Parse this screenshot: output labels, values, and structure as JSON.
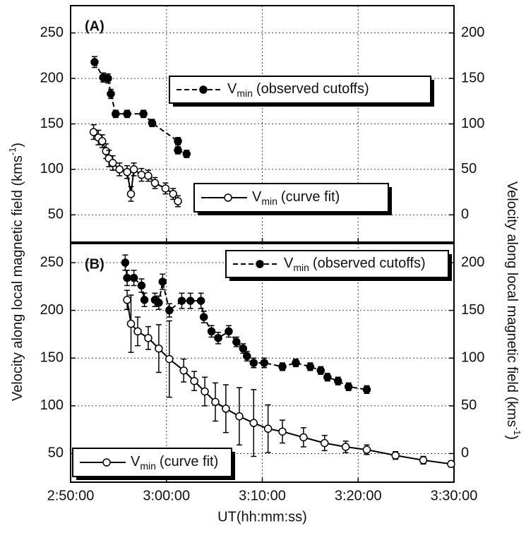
{
  "y_label": "Velocity along local magnetic field (kms",
  "y_label_sup": "-1",
  "y_label_end": ")",
  "chart_data": [
    {
      "type": "scatter",
      "panel_label": "(A)",
      "xlim": [
        170,
        210
      ],
      "xticks": [
        170,
        180,
        190,
        200,
        210
      ],
      "ylim": [
        20,
        280
      ],
      "yticks": [
        50,
        100,
        150,
        200,
        250
      ],
      "y2lim": [
        -30,
        230
      ],
      "y2ticks": [
        0,
        50,
        100,
        150,
        200
      ],
      "grid": true,
      "series": [
        {
          "name": "V",
          "name_sub": "min",
          "name_rest": "(observed cutoffs)",
          "color": "#000",
          "marker": "filled",
          "line": "dashed",
          "x": [
            172.5,
            173.4,
            173.9,
            174.2,
            174.7,
            175.9,
            177.6,
            178.5,
            181.2,
            181.2,
            182.1
          ],
          "values": [
            218,
            201,
            200,
            183,
            161,
            161,
            161,
            151,
            131,
            121,
            117
          ],
          "errors": [
            6,
            5,
            5,
            5,
            4,
            4,
            4,
            4,
            4,
            4,
            4
          ]
        },
        {
          "name": "V",
          "name_sub": "min",
          "name_rest": "(curve fit)",
          "color": "#000",
          "marker": "open",
          "line": "solid",
          "x": [
            172.4,
            172.9,
            173.3,
            173.7,
            174.0,
            174.4,
            175.1,
            175.9,
            176.3,
            176.6,
            177.4,
            178.1,
            178.8,
            179.9,
            180.7,
            181.2
          ],
          "values": [
            141,
            135,
            131,
            120,
            112,
            107,
            100,
            97,
            73,
            100,
            94,
            93,
            85,
            79,
            73,
            65
          ],
          "errors": [
            8,
            8,
            7,
            8,
            9,
            8,
            7,
            7,
            8,
            7,
            7,
            6,
            6,
            6,
            6,
            6
          ]
        }
      ]
    },
    {
      "type": "scatter",
      "panel_label": "(B)",
      "xlim": [
        170,
        210
      ],
      "xticks": [
        {
          "value": 170,
          "label": "2:50:00"
        },
        {
          "value": 180,
          "label": "3:00:00"
        },
        {
          "value": 190,
          "label": "3:10:00"
        },
        {
          "value": 200,
          "label": "3:20:00"
        },
        {
          "value": 210,
          "label": "3:30:00"
        }
      ],
      "ylim": [
        20,
        270
      ],
      "yticks": [
        50,
        100,
        150,
        200,
        250
      ],
      "y2lim": [
        -30,
        220
      ],
      "y2ticks": [
        0,
        50,
        100,
        150,
        200
      ],
      "grid": true,
      "xlabel": "UT(hh:mm:ss)",
      "series": [
        {
          "name": "V",
          "name_sub": "min",
          "name_rest": "(observed cutoffs)",
          "color": "#000",
          "marker": "filled",
          "line": "dashed",
          "x": [
            175.7,
            175.9,
            176.6,
            177.4,
            177.7,
            178.8,
            179.2,
            179.6,
            180.3,
            181.6,
            182.5,
            183.6,
            183.9,
            184.7,
            185.4,
            186.5,
            187.3,
            188.0,
            188.4,
            189.1,
            190.2,
            192.1,
            193.5,
            195.0,
            196.1,
            196.8,
            197.9,
            199.0,
            200.9
          ],
          "values": [
            250,
            234,
            234,
            226,
            211,
            211,
            208,
            230,
            200,
            210,
            210,
            210,
            193,
            178,
            171,
            178,
            167,
            160,
            152,
            145,
            145,
            141,
            145,
            141,
            137,
            130,
            126,
            120,
            117
          ],
          "errors": [
            8,
            8,
            8,
            7,
            7,
            7,
            7,
            8,
            7,
            8,
            8,
            8,
            6,
            6,
            6,
            6,
            5,
            5,
            5,
            5,
            5,
            4,
            4,
            4,
            4,
            4,
            4,
            4,
            4
          ]
        },
        {
          "name": "V",
          "name_sub": "min",
          "name_rest": "(curve fit)",
          "color": "#000",
          "marker": "open",
          "line": "solid",
          "x": [
            175.9,
            176.3,
            177.0,
            178.1,
            179.2,
            180.3,
            181.8,
            182.9,
            184.0,
            185.1,
            186.2,
            187.6,
            189.1,
            190.6,
            192.1,
            194.3,
            196.5,
            198.7,
            200.9,
            203.9,
            206.8,
            209.7
          ],
          "values": [
            211,
            186,
            178,
            171,
            160,
            149,
            137,
            126,
            115,
            104,
            97,
            89,
            82,
            76,
            73,
            67,
            61,
            57,
            54,
            48,
            43,
            39
          ],
          "errors": [
            10,
            30,
            15,
            12,
            25,
            40,
            12,
            10,
            15,
            20,
            25,
            30,
            35,
            25,
            12,
            10,
            8,
            6,
            5,
            4,
            4,
            3
          ]
        }
      ]
    }
  ]
}
